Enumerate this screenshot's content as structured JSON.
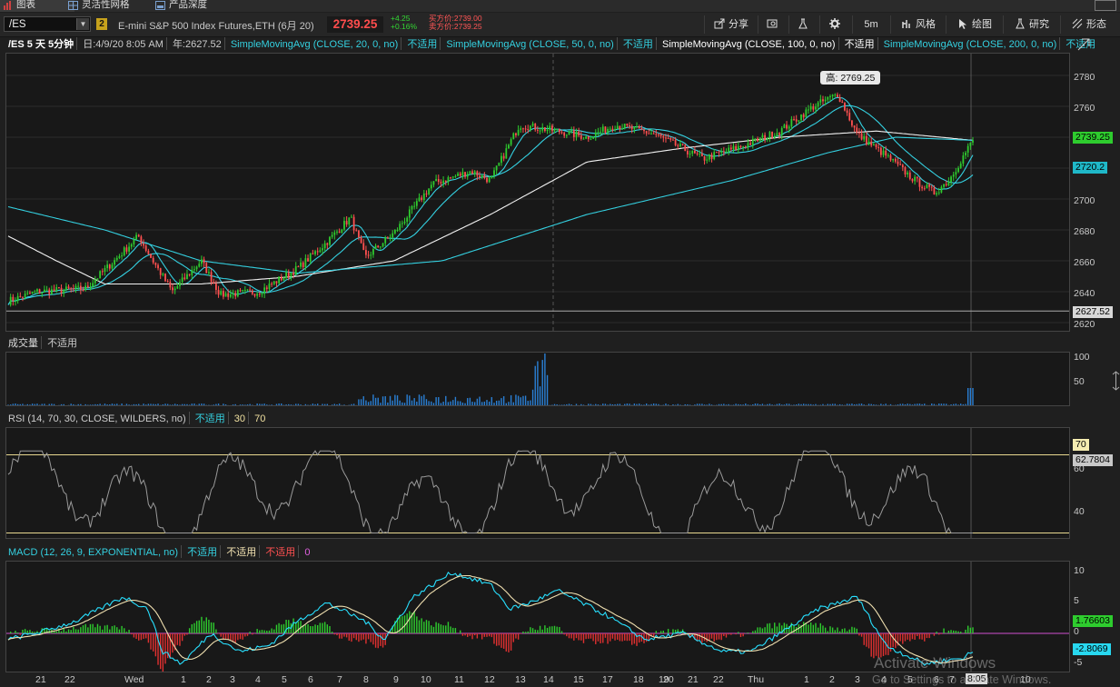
{
  "top_tabs": [
    {
      "label": "图表",
      "icon": "bar-chart-icon"
    },
    {
      "label": "灵活性网格",
      "icon": "grid-icon"
    },
    {
      "label": "产品深度",
      "icon": "depth-icon"
    }
  ],
  "header": {
    "symbol": "/ES",
    "link_badge": "2",
    "description": "E-mini S&P 500 Index Futures,ETH (6月 20)",
    "last_price": "2739.25",
    "change": "+4.25",
    "change_pct": "+0.16%",
    "bid": "买方价:2739.00",
    "ask": "卖方价:2739.25",
    "buttons": [
      {
        "label": "分享",
        "icon": "share-icon"
      },
      {
        "label": "",
        "icon": "camera-icon"
      },
      {
        "label": "",
        "icon": "flask-icon"
      },
      {
        "label": "",
        "icon": "gear-icon"
      },
      {
        "label": "5m",
        "icon": ""
      },
      {
        "label": "风格",
        "icon": "style-icon"
      },
      {
        "label": "绘图",
        "icon": "cursor-icon"
      },
      {
        "label": "研究",
        "icon": "beaker-icon"
      },
      {
        "label": "形态",
        "icon": "pattern-icon"
      }
    ]
  },
  "price_legend": {
    "title": "/ES 5 天 5分钟",
    "date": "日:4/9/20 8:05 AM",
    "year": "年:2627.52",
    "studies": [
      {
        "label": "SimpleMovingAvg (CLOSE, 20, 0, no)",
        "value": "不适用",
        "color": "#34d0e0"
      },
      {
        "label": "SimpleMovingAvg (CLOSE, 50, 0, no)",
        "value": "不适用",
        "color": "#34d0e0"
      },
      {
        "label": "SimpleMovingAvg (CLOSE, 100, 0, no)",
        "value": "不适用",
        "color": "#ffffff"
      },
      {
        "label": "SimpleMovingAvg (CLOSE, 200, 0, no)",
        "value": "不适用",
        "color": "#34d0e0"
      }
    ],
    "high_label": "高: 2769.25"
  },
  "price_axis": {
    "ticks": [
      "2780",
      "2760",
      "2740",
      "2720",
      "2700",
      "2680",
      "2660",
      "2640",
      "2620"
    ],
    "last_badge": "2739.25",
    "sma_badge": "2720.2",
    "year_badge": "2627.52"
  },
  "volume_legend": {
    "title": "成交量",
    "value": "不适用"
  },
  "volume_axis": {
    "ticks": [
      "100",
      "50"
    ]
  },
  "rsi_legend": {
    "title": "RSI (14, 70, 30, CLOSE, WILDERS, no)",
    "value": "不适用",
    "ob": "30",
    "os": "70"
  },
  "rsi_axis": {
    "ticks": [
      "60",
      "40"
    ],
    "ob_badge": "70",
    "value_badge": "62.7804"
  },
  "macd_legend": {
    "title": "MACD (12, 26, 9, EXPONENTIAL, no)",
    "values": [
      "不适用",
      "不适用",
      "不适用"
    ],
    "zero": "0"
  },
  "macd_axis": {
    "ticks": [
      "10",
      "5",
      "0",
      "-5"
    ],
    "value_badge": "1.76603",
    "avg_badge": "-2.8069"
  },
  "time_axis": {
    "labels": [
      "21",
      "22",
      "Wed",
      "1",
      "2",
      "3",
      "4",
      "5",
      "6",
      "7",
      "8",
      "9",
      "10",
      "11",
      "12",
      "13",
      "14",
      "15",
      "17",
      "18",
      "19",
      "20",
      "21",
      "22",
      "Thu",
      "1",
      "2",
      "3",
      "4",
      "5",
      "6",
      "7",
      "8:05",
      "10"
    ]
  },
  "colors": {
    "up": "#2ecc2e",
    "down": "#ff5050",
    "cyan": "#34d0e0",
    "white": "#f2f2f2",
    "rsi": "#9a9a9a",
    "macd_value": "#28e0ff",
    "macd_avg": "#f0e0b0"
  },
  "watermark": {
    "line1": "Activate Windows",
    "line2": "Go to Settings to activate Windows."
  }
}
